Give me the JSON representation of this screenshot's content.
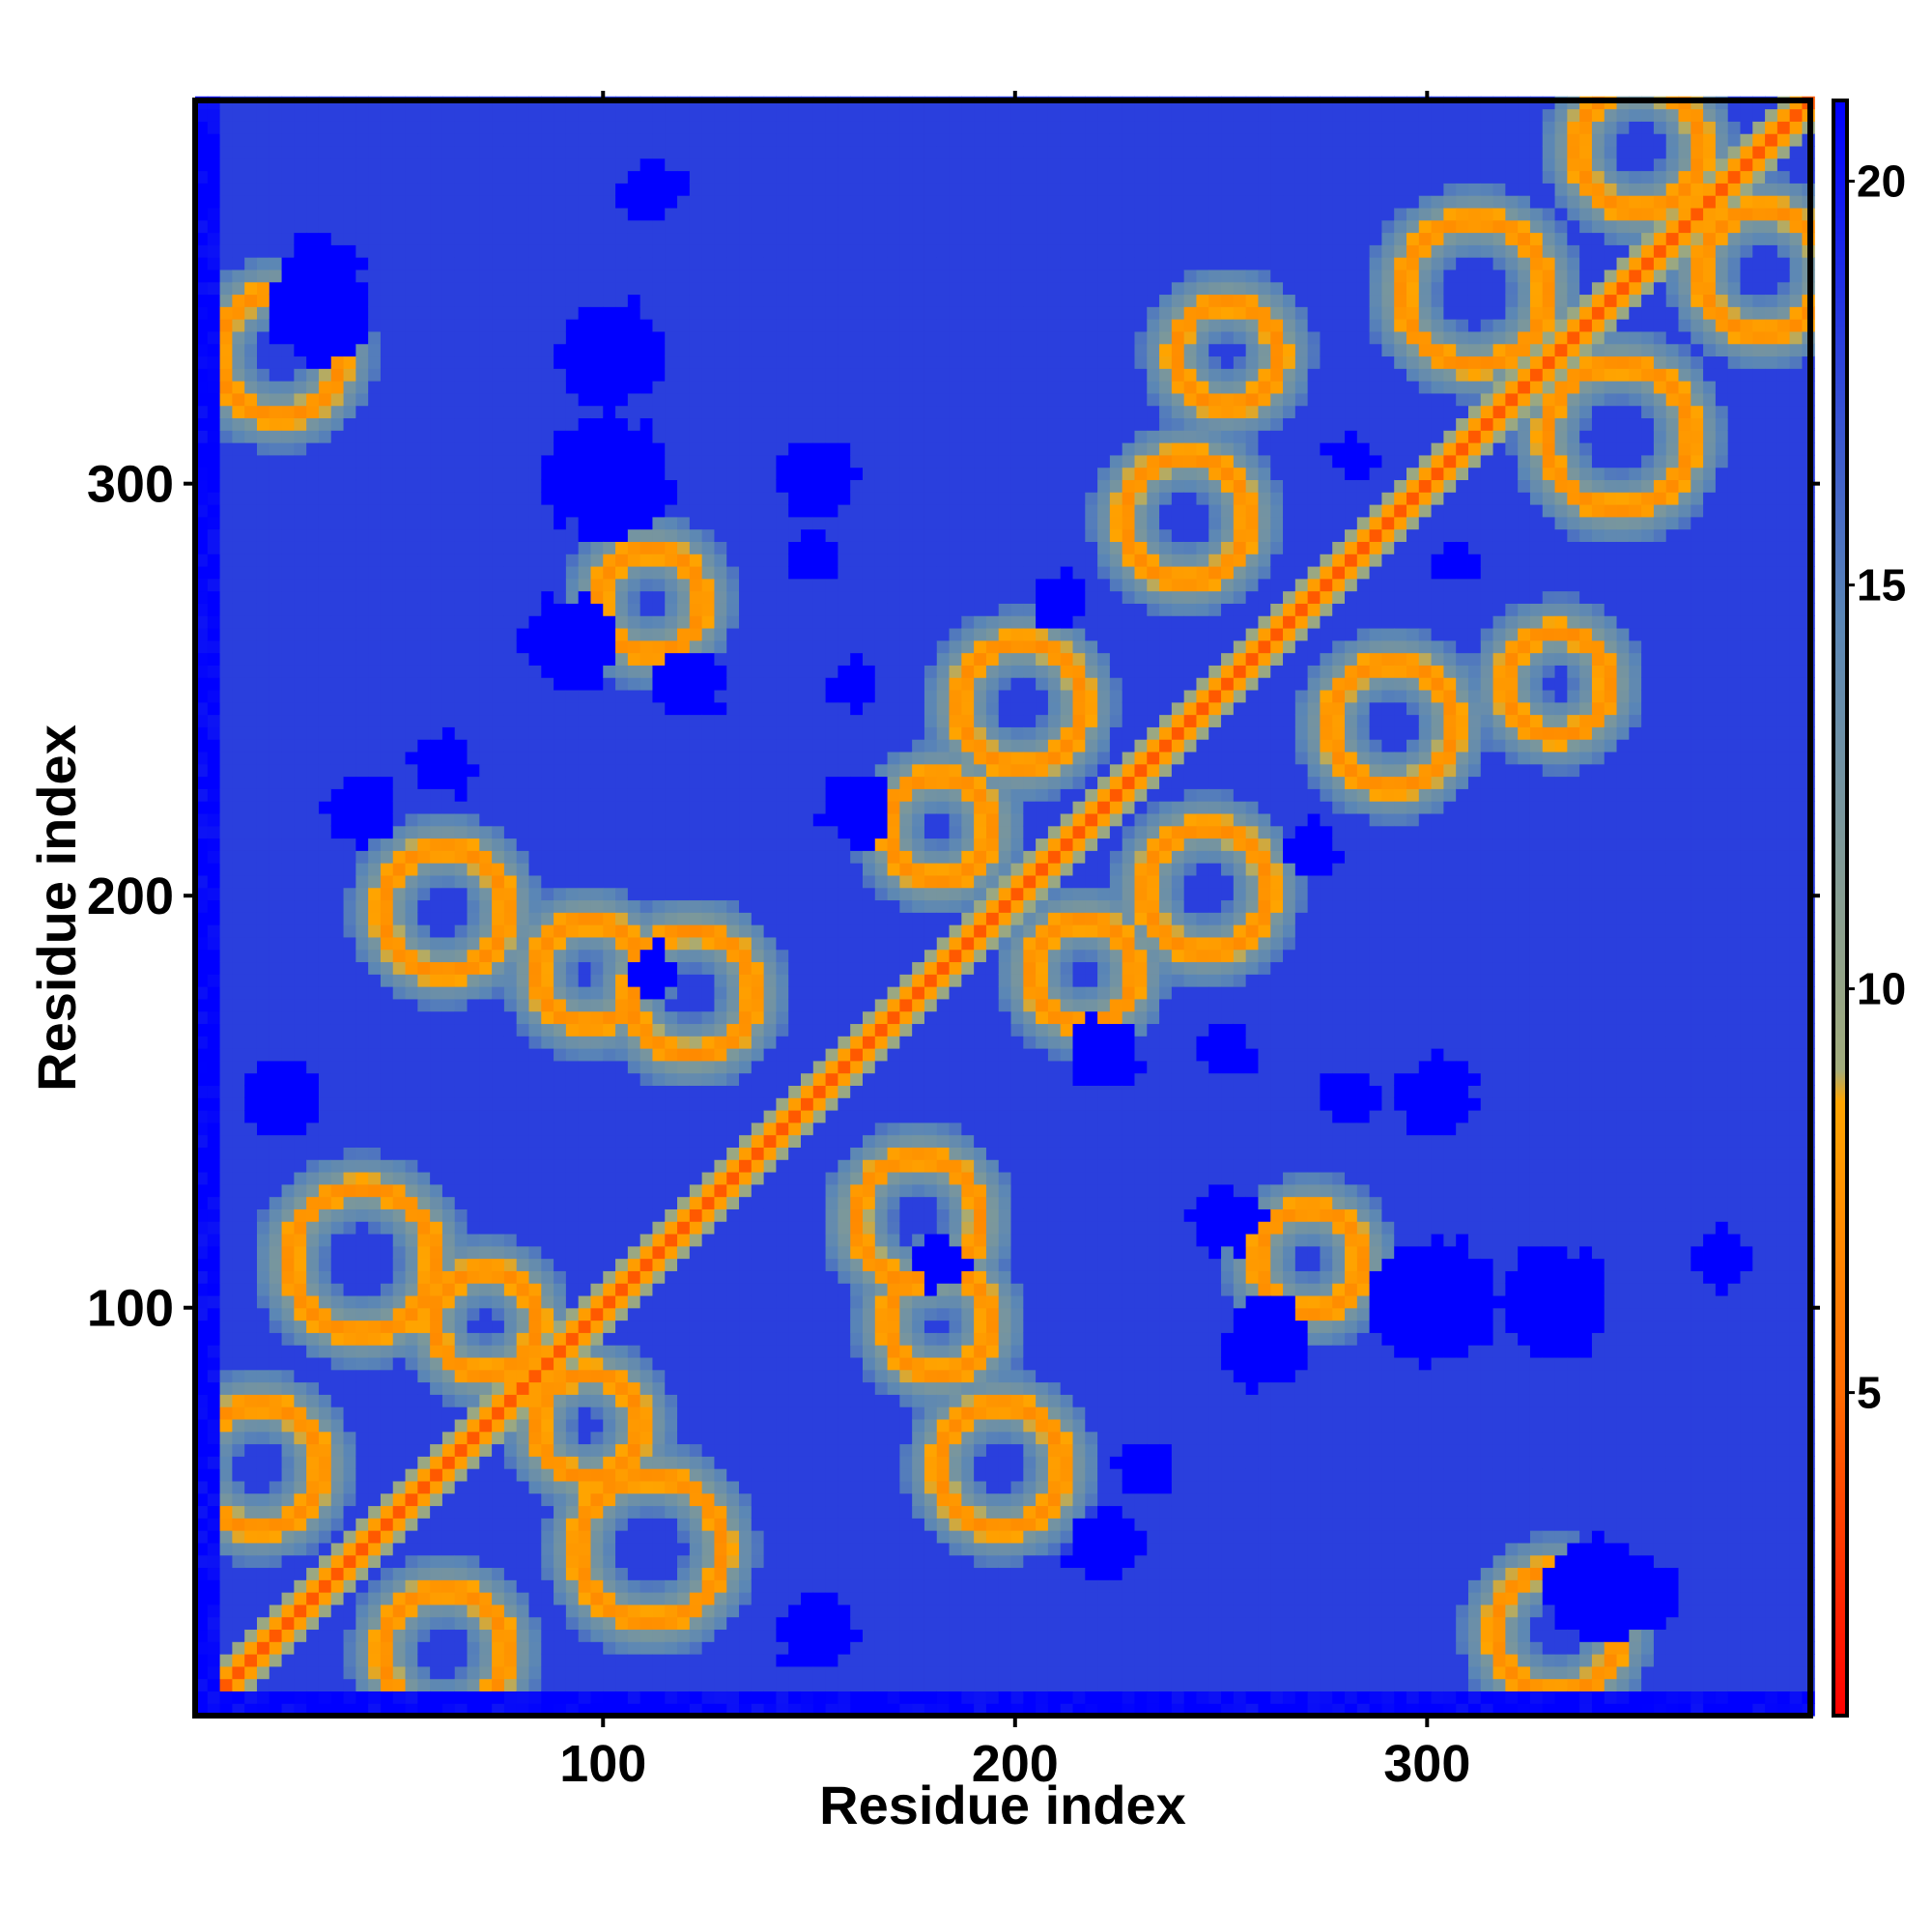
{
  "chart_data": {
    "type": "heatmap",
    "title": "",
    "xlabel": "Residue index",
    "ylabel": "Residue index",
    "xlim": [
      1,
      393
    ],
    "ylim": [
      1,
      393
    ],
    "xticks": [
      100,
      200,
      300
    ],
    "yticks": [
      100,
      200,
      300
    ],
    "grid": false,
    "legend": "colorbar right",
    "colorbar": {
      "ticks": [
        5,
        10,
        15,
        20
      ],
      "range": [
        1,
        21
      ],
      "colors": [
        {
          "stop": 0.0,
          "color": "#ff0000"
        },
        {
          "stop": 0.2,
          "color": "#ff7f00"
        },
        {
          "stop": 0.38,
          "color": "#ffa500"
        },
        {
          "stop": 0.4,
          "color": "#a2ac7c"
        },
        {
          "stop": 0.68,
          "color": "#5a86b6"
        },
        {
          "stop": 1.0,
          "color": "#0000ff"
        }
      ]
    },
    "values_description_only_for_script": null,
    "features": {
      "diagonal_value": 3.8,
      "background_value": 18,
      "far_value": 21,
      "near_contact_value": 6,
      "halo_value": 12
    }
  }
}
